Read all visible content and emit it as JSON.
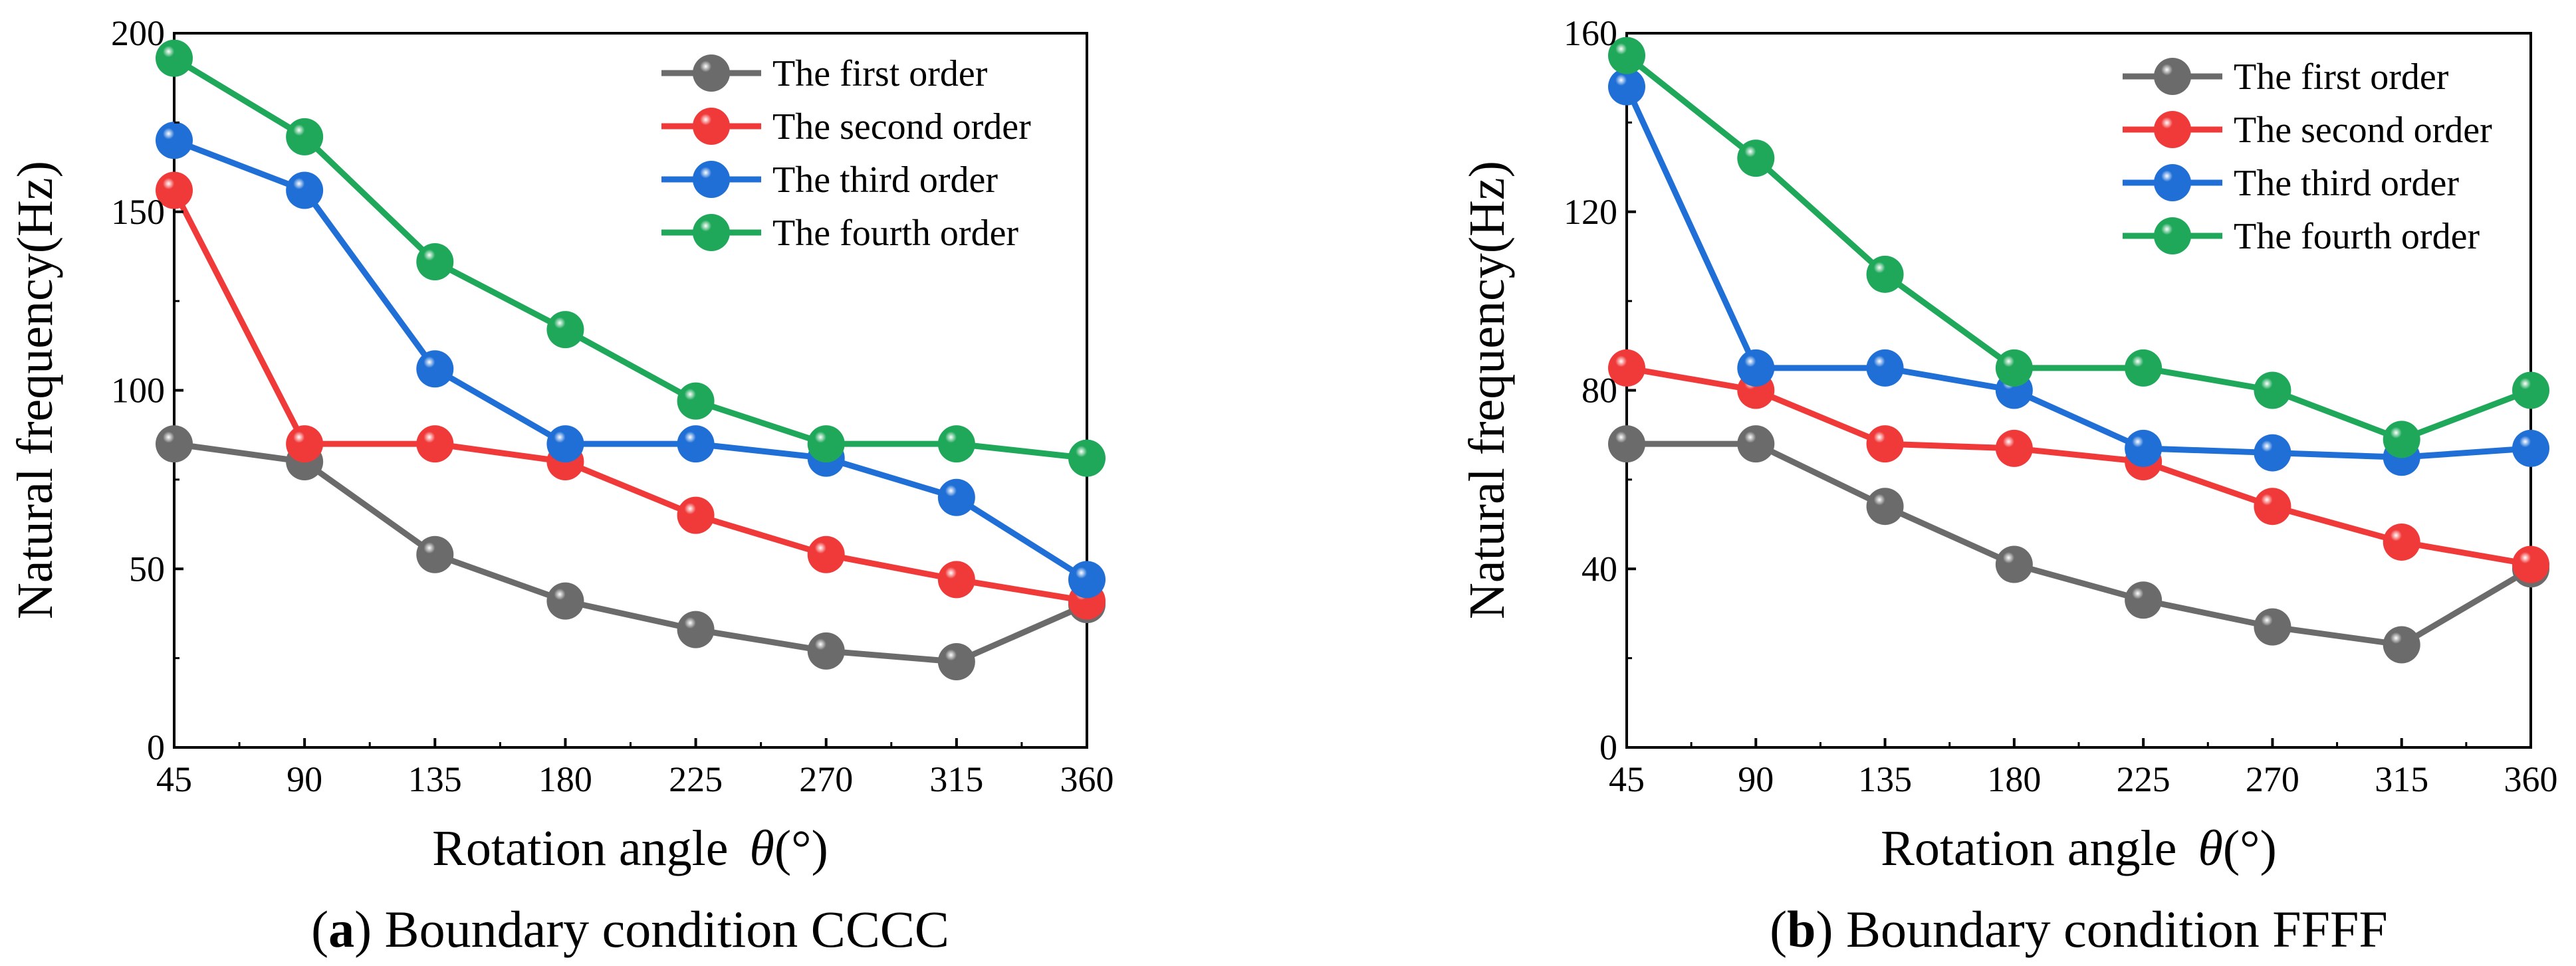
{
  "chart_data": [
    {
      "type": "line",
      "panel": "a",
      "caption_letter": "a",
      "caption_text": "Boundary condition CCCC",
      "xlabel_text": "Rotation angle",
      "xlabel_symbol": "θ",
      "xlabel_unit": "(°)",
      "ylabel": "Natural frequency(Hz)",
      "x": [
        45,
        90,
        135,
        180,
        225,
        270,
        315,
        360
      ],
      "xticks": [
        "45",
        "90",
        "135",
        "180",
        "225",
        "270",
        "315",
        "360"
      ],
      "xlim": [
        45,
        360
      ],
      "ylim": [
        0,
        200
      ],
      "yticks": [
        "0",
        "50",
        "100",
        "150",
        "200"
      ],
      "legend_position": "top-right",
      "series": [
        {
          "name": "The first order",
          "color": "#6b6b6b",
          "values": [
            85,
            80,
            54,
            41,
            33,
            27,
            24,
            40
          ]
        },
        {
          "name": "The second order",
          "color": "#f03a3a",
          "values": [
            156,
            85,
            85,
            80,
            65,
            54,
            47,
            41
          ]
        },
        {
          "name": "The third order",
          "color": "#1f6fd6",
          "values": [
            170,
            156,
            106,
            85,
            85,
            81,
            70,
            47
          ]
        },
        {
          "name": "The fourth order",
          "color": "#1fa85a",
          "values": [
            193,
            171,
            136,
            117,
            97,
            85,
            85,
            81
          ]
        }
      ]
    },
    {
      "type": "line",
      "panel": "b",
      "caption_letter": "b",
      "caption_text": "Boundary condition FFFF",
      "xlabel_text": "Rotation angle",
      "xlabel_symbol": "θ",
      "xlabel_unit": "(°)",
      "ylabel": "Natural frequency(Hz)",
      "x": [
        45,
        90,
        135,
        180,
        225,
        270,
        315,
        360
      ],
      "xticks": [
        "45",
        "90",
        "135",
        "180",
        "225",
        "270",
        "315",
        "360"
      ],
      "xlim": [
        45,
        360
      ],
      "ylim": [
        0,
        160
      ],
      "yticks": [
        "0",
        "40",
        "80",
        "120",
        "160"
      ],
      "legend_position": "top-right",
      "series": [
        {
          "name": "The first order",
          "color": "#6b6b6b",
          "values": [
            68,
            68,
            54,
            41,
            33,
            27,
            23,
            40
          ]
        },
        {
          "name": "The second order",
          "color": "#f03a3a",
          "values": [
            85,
            80,
            68,
            67,
            64,
            54,
            46,
            41
          ]
        },
        {
          "name": "The third order",
          "color": "#1f6fd6",
          "values": [
            148,
            85,
            85,
            80,
            67,
            66,
            65,
            67
          ]
        },
        {
          "name": "The fourth order",
          "color": "#1fa85a",
          "values": [
            155,
            132,
            106,
            85,
            85,
            80,
            69,
            80
          ]
        }
      ]
    }
  ]
}
